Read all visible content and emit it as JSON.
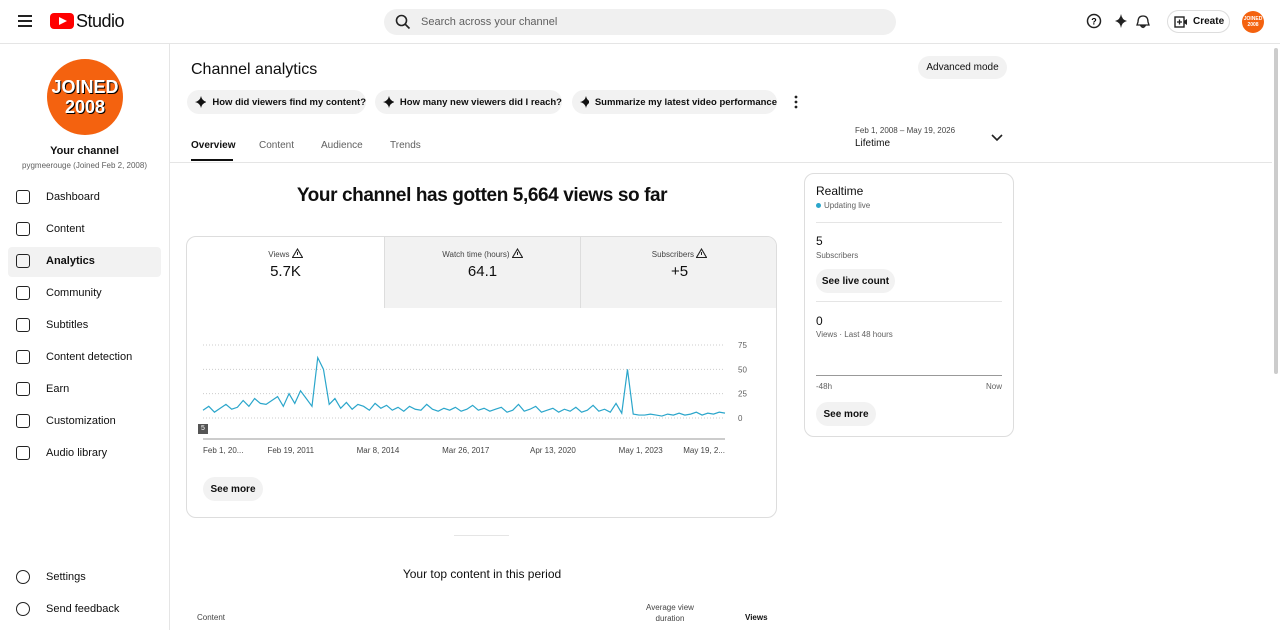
{
  "header": {
    "logo_text": "Studio",
    "search_placeholder": "Search across your channel",
    "create": "Create",
    "avatar_text": "JOINED 2008"
  },
  "sidebar": {
    "avatar_lines": [
      "JOINED",
      "2008"
    ],
    "channel_title": "Your channel",
    "channel_subtitle": "pygmeerouge (Joined Feb 2, 2008)",
    "nav": [
      "Dashboard",
      "Content",
      "Analytics",
      "Community",
      "Subtitles",
      "Content detection",
      "Earn",
      "Customization",
      "Audio library"
    ],
    "footer": [
      "Settings",
      "Send feedback"
    ]
  },
  "main": {
    "title": "Channel analytics",
    "advanced": "Advanced mode",
    "prompts": [
      "How did viewers find my content?",
      "How many new viewers did I reach?",
      "Summarize my latest video performance"
    ],
    "tabs": [
      "Overview",
      "Content",
      "Audience",
      "Trends"
    ],
    "date_range": "Feb 1, 2008 – May 19, 2026",
    "period": "Lifetime",
    "headline": "Your channel has gotten 5,664 views so far",
    "metrics": [
      {
        "label": "Views",
        "value": "5.7K"
      },
      {
        "label": "Watch time (hours)",
        "value": "64.1"
      },
      {
        "label": "Subscribers",
        "value": "+5"
      }
    ],
    "chart_badge": "5",
    "see_more": "See more",
    "top_content": {
      "title": "Your top content in this period",
      "columns": [
        "Content",
        "Average view duration",
        "Views"
      ]
    }
  },
  "realtime": {
    "title": "Realtime",
    "status": "Updating live",
    "subscribers": "5",
    "subscribers_label": "Subscribers",
    "live_count": "See live count",
    "views": "0",
    "views_label": "Views · Last 48 hours",
    "start": "-48h",
    "end": "Now",
    "see_more": "See more"
  },
  "chart_data": {
    "type": "line",
    "color": "#2ba6cb",
    "values": [
      8,
      12,
      6,
      10,
      14,
      9,
      11,
      18,
      12,
      20,
      15,
      14,
      18,
      22,
      12,
      25,
      15,
      28,
      20,
      12,
      62,
      50,
      14,
      20,
      10,
      16,
      9,
      14,
      12,
      8,
      15,
      10,
      13,
      8,
      11,
      7,
      12,
      9,
      8,
      14,
      9,
      7,
      10,
      8,
      11,
      7,
      9,
      13,
      8,
      10,
      7,
      9,
      11,
      6,
      8,
      14,
      7,
      9,
      12,
      6,
      8,
      10,
      6,
      9,
      7,
      11,
      6,
      8,
      13,
      7,
      9,
      6,
      15,
      5,
      50,
      4,
      3,
      3,
      4,
      3,
      2,
      4,
      3,
      5,
      3,
      4,
      6,
      3,
      5,
      4,
      6,
      5
    ],
    "xlim": [
      0,
      91
    ],
    "xticks": [
      {
        "value": 0,
        "label": "Feb 1, 20..."
      },
      {
        "value": 15.3,
        "label": "Feb 19, 2011"
      },
      {
        "value": 30.5,
        "label": "Mar 8, 2014"
      },
      {
        "value": 45.8,
        "label": "Mar 26, 2017"
      },
      {
        "value": 61,
        "label": "Apr 13, 2020"
      },
      {
        "value": 76.3,
        "label": "May 1, 2023"
      },
      {
        "value": 91,
        "label": "May 19, 2..."
      }
    ],
    "ylim": [
      0,
      75
    ],
    "yticks": [
      0,
      25,
      50,
      75
    ],
    "grid": true
  }
}
